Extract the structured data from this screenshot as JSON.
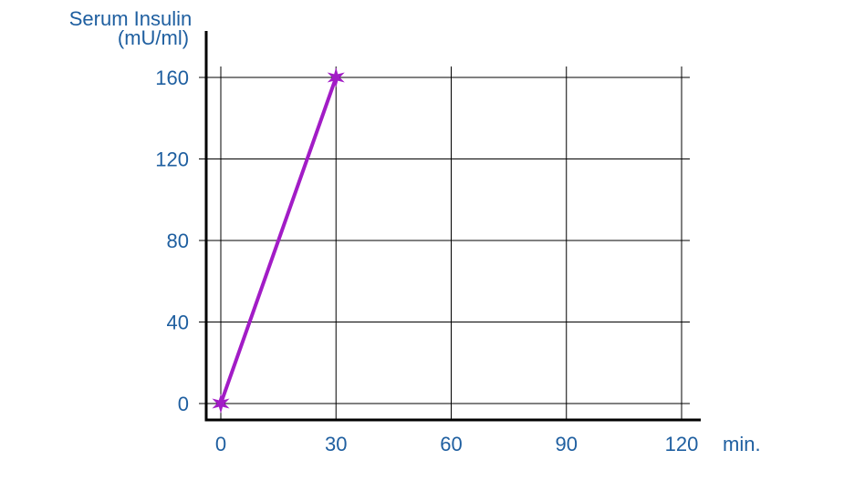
{
  "chart_data": {
    "type": "line",
    "ylabel_line1": "Serum Insulin",
    "ylabel_line2": "(mU/ml)",
    "xlabel": "min.",
    "x_ticks": [
      0,
      30,
      60,
      90,
      120
    ],
    "y_ticks": [
      0,
      40,
      80,
      120,
      160
    ],
    "xlim": [
      0,
      120
    ],
    "ylim": [
      0,
      160
    ],
    "grid": true,
    "marker": "star",
    "series": [
      {
        "x": [
          0,
          30
        ],
        "y": [
          0,
          160
        ],
        "color": "#a21cc6"
      }
    ]
  },
  "colors": {
    "text": "#1f5fa0",
    "axis": "#000000",
    "grid": "#000000",
    "series": "#a21cc6"
  }
}
